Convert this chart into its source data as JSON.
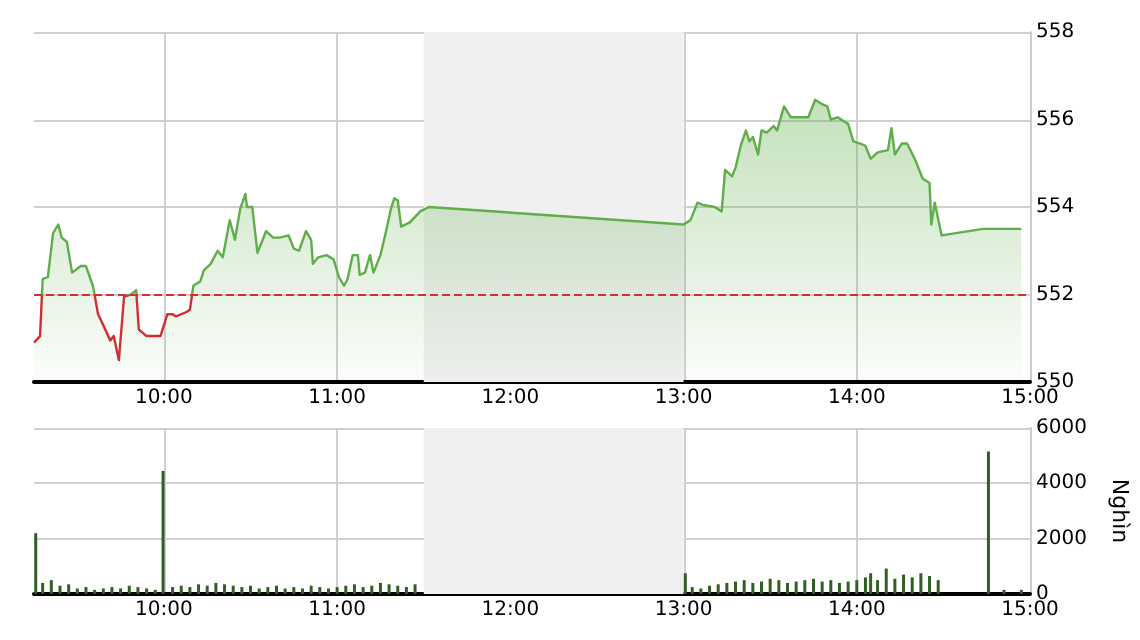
{
  "chart_data": [
    {
      "type": "area",
      "xlim": [
        9.25,
        15
      ],
      "xticks": [
        {
          "value": 10,
          "label": "10:00"
        },
        {
          "value": 11,
          "label": "11:00"
        },
        {
          "value": 12,
          "label": "12:00"
        },
        {
          "value": 13,
          "label": "13:00"
        },
        {
          "value": 14,
          "label": "14:00"
        },
        {
          "value": 15,
          "label": "15:00"
        }
      ],
      "ylim": [
        550,
        558
      ],
      "yticks": [
        550,
        552,
        554,
        556,
        558
      ],
      "grid": true,
      "bands": [
        {
          "axis": "x",
          "from": 11.5,
          "to": 13,
          "color": "#f0f0f0"
        }
      ],
      "ref_lines": [
        {
          "axis": "y",
          "value": 552,
          "color": "#d03030",
          "line_style": "dashed"
        }
      ],
      "series": [
        {
          "color": "#5fae4a",
          "x": [
            9.25,
            9.285,
            9.3,
            9.33,
            9.36,
            9.39,
            9.41,
            9.44,
            9.47,
            9.52,
            9.55,
            9.59,
            9.62,
            9.65,
            9.69,
            9.71,
            9.74,
            9.77,
            9.81,
            9.84,
            9.855,
            9.9,
            9.98,
            10.02,
            10.05,
            10.07,
            10.13,
            10.15,
            10.17,
            10.21,
            10.23,
            10.27,
            10.31,
            10.34,
            10.38,
            10.41,
            10.44,
            10.47,
            10.48,
            10.51,
            10.54,
            10.59,
            10.63,
            10.67,
            10.72,
            10.75,
            10.78,
            10.82,
            10.85,
            10.86,
            10.89,
            10.94,
            10.98,
            11.01,
            11.04,
            11.06,
            11.09,
            11.12,
            11.13,
            11.16,
            11.19,
            11.21,
            11.25,
            11.28,
            11.31,
            11.33,
            11.35,
            11.37,
            11.42,
            11.48,
            11.53,
            13,
            13.04,
            13.08,
            13.11,
            13.18,
            13.22,
            13.24,
            13.28,
            13.3,
            13.33,
            13.36,
            13.38,
            13.4,
            13.43,
            13.45,
            13.48,
            13.52,
            13.54,
            13.58,
            13.62,
            13.68,
            13.72,
            13.76,
            13.8,
            13.83,
            13.85,
            13.89,
            13.93,
            13.95,
            13.98,
            14.02,
            14.05,
            14.08,
            14.12,
            14.18,
            14.2,
            14.22,
            14.26,
            14.29,
            14.31,
            14.34,
            14.38,
            14.42,
            14.43,
            14.45,
            14.49,
            14.73,
            14.95
          ],
          "values": [
            550.9,
            551.05,
            552.35,
            552.4,
            553.4,
            553.6,
            553.3,
            553.2,
            552.5,
            552.65,
            552.65,
            552.2,
            551.55,
            551.3,
            550.95,
            551.05,
            550.5,
            551.95,
            552,
            552.1,
            551.2,
            551.05,
            551.05,
            551.55,
            551.55,
            551.5,
            551.6,
            551.65,
            552.2,
            552.3,
            552.55,
            552.7,
            553,
            552.85,
            553.7,
            553.25,
            553.95,
            554.3,
            554,
            554,
            552.95,
            553.45,
            553.3,
            553.3,
            553.35,
            553.05,
            553,
            553.45,
            553.25,
            552.7,
            552.85,
            552.9,
            552.8,
            552.4,
            552.2,
            552.35,
            552.9,
            552.9,
            552.45,
            552.5,
            552.9,
            552.5,
            552.9,
            553.4,
            553.95,
            554.2,
            554.15,
            553.55,
            553.65,
            553.9,
            554,
            553.6,
            553.7,
            554.1,
            554.05,
            554,
            553.9,
            554.85,
            554.7,
            554.9,
            555.4,
            555.75,
            555.5,
            555.6,
            555.2,
            555.75,
            555.7,
            555.85,
            555.75,
            556.3,
            556.05,
            556.05,
            556.05,
            556.45,
            556.35,
            556.3,
            556,
            556.05,
            555.95,
            555.9,
            555.5,
            555.45,
            555.4,
            555.1,
            555.25,
            555.3,
            555.8,
            555.2,
            555.45,
            555.45,
            555.3,
            555.05,
            554.65,
            554.55,
            553.6,
            554.1,
            553.35,
            553.5,
            553.5
          ]
        }
      ]
    },
    {
      "type": "bar",
      "xlim": [
        9.25,
        15
      ],
      "xticks": [
        {
          "value": 10,
          "label": "10:00"
        },
        {
          "value": 11,
          "label": "11:00"
        },
        {
          "value": 12,
          "label": "12:00"
        },
        {
          "value": 13,
          "label": "13:00"
        },
        {
          "value": 14,
          "label": "14:00"
        },
        {
          "value": 15,
          "label": "15:00"
        }
      ],
      "ylim": [
        0,
        6000
      ],
      "yticks": [
        0,
        2000,
        4000,
        6000
      ],
      "ylabel": "Nghìn",
      "grid": true,
      "bands": [
        {
          "axis": "x",
          "from": 11.5,
          "to": 13,
          "color": "#f0f0f0"
        }
      ],
      "series": [
        {
          "color": "#2f5f22",
          "x": [
            9.26,
            9.3,
            9.35,
            9.4,
            9.45,
            9.5,
            9.55,
            9.6,
            9.65,
            9.7,
            9.75,
            9.8,
            9.85,
            9.9,
            9.95,
            9.995,
            10.05,
            10.1,
            10.15,
            10.2,
            10.25,
            10.3,
            10.35,
            10.4,
            10.45,
            10.5,
            10.55,
            10.6,
            10.65,
            10.7,
            10.75,
            10.8,
            10.85,
            10.9,
            10.95,
            11,
            11.05,
            11.1,
            11.15,
            11.2,
            11.25,
            11.3,
            11.35,
            11.4,
            11.45,
            13.01,
            13.05,
            13.1,
            13.15,
            13.2,
            13.25,
            13.3,
            13.35,
            13.4,
            13.45,
            13.5,
            13.55,
            13.6,
            13.65,
            13.7,
            13.75,
            13.8,
            13.85,
            13.9,
            13.95,
            14,
            14.05,
            14.08,
            14.12,
            14.17,
            14.22,
            14.27,
            14.32,
            14.37,
            14.42,
            14.47,
            14.76,
            14.85,
            14.95
          ],
          "values": [
            2200,
            400,
            500,
            300,
            350,
            200,
            250,
            150,
            200,
            250,
            200,
            300,
            250,
            200,
            150,
            4450,
            250,
            300,
            250,
            350,
            300,
            400,
            350,
            300,
            250,
            300,
            200,
            250,
            300,
            200,
            250,
            200,
            300,
            250,
            200,
            250,
            300,
            350,
            250,
            300,
            400,
            350,
            300,
            250,
            350,
            750,
            250,
            200,
            300,
            350,
            400,
            450,
            500,
            400,
            450,
            550,
            500,
            400,
            450,
            500,
            550,
            450,
            500,
            400,
            450,
            500,
            600,
            750,
            500,
            920,
            550,
            700,
            600,
            750,
            650,
            500,
            5150,
            150,
            150
          ]
        }
      ]
    }
  ]
}
